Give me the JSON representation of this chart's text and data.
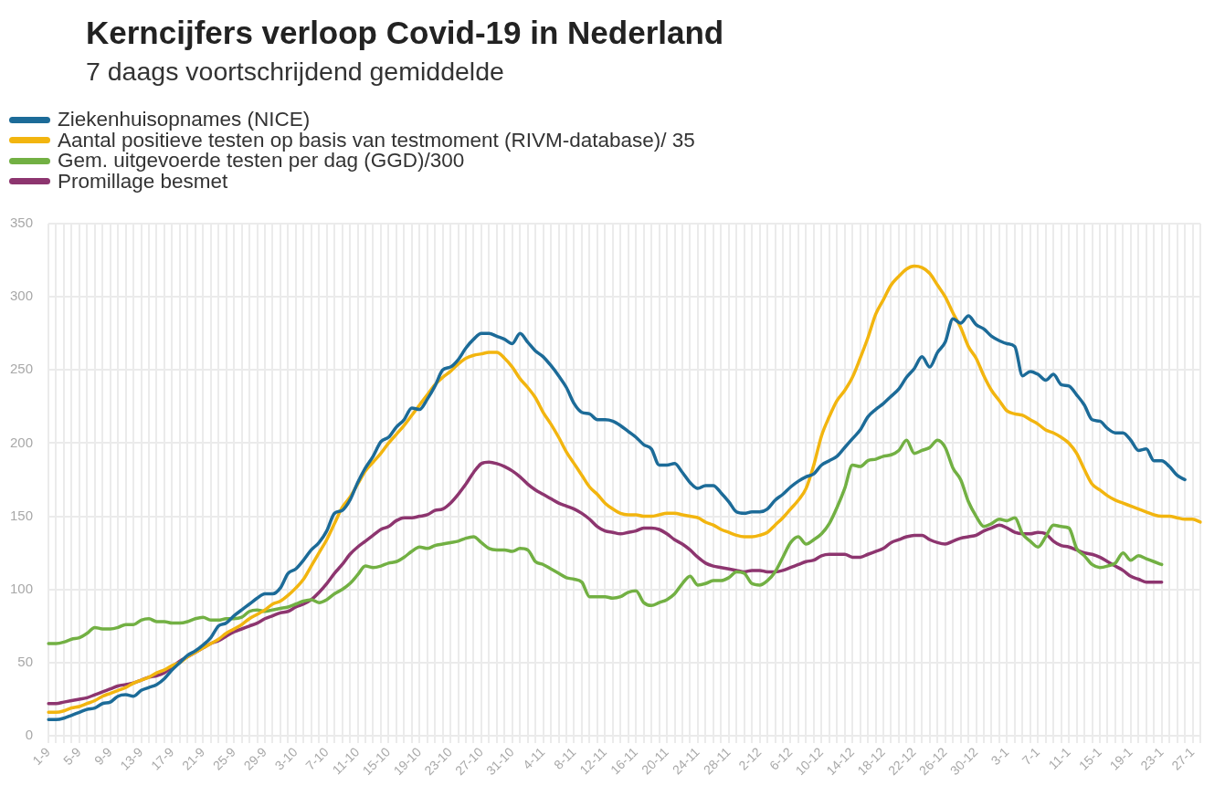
{
  "chart_data": {
    "type": "line",
    "title": "Kerncijfers verloop Covid-19 in Nederland",
    "subtitle": "7 daags voortschrijdend gemiddelde",
    "categories": [
      "1-9",
      null,
      null,
      null,
      "5-9",
      null,
      null,
      null,
      "9-9",
      null,
      null,
      null,
      "13-9",
      null,
      null,
      null,
      "17-9",
      null,
      null,
      null,
      "21-9",
      null,
      null,
      null,
      "25-9",
      null,
      null,
      null,
      "29-9",
      null,
      null,
      null,
      "3-10",
      null,
      null,
      null,
      "7-10",
      null,
      null,
      null,
      "11-10",
      null,
      null,
      null,
      "15-10",
      null,
      null,
      null,
      "19-10",
      null,
      null,
      null,
      "23-10",
      null,
      null,
      null,
      "27-10",
      null,
      null,
      null,
      "31-10",
      null,
      null,
      null,
      "4-11",
      null,
      null,
      null,
      "8-11",
      null,
      null,
      null,
      "12-11",
      null,
      null,
      null,
      "16-11",
      null,
      null,
      null,
      "20-11",
      null,
      null,
      null,
      "24-11",
      null,
      null,
      null,
      "28-11",
      null,
      null,
      null,
      "2-12",
      null,
      null,
      null,
      "6-12",
      null,
      null,
      null,
      "10-12",
      null,
      null,
      null,
      "14-12",
      null,
      null,
      null,
      "18-12",
      null,
      null,
      null,
      "22-12",
      null,
      null,
      null,
      "26-12",
      null,
      null,
      null,
      "30-12",
      null,
      null,
      null,
      "3-1",
      null,
      null,
      null,
      "7-1",
      null,
      null,
      null,
      "11-1",
      null,
      null,
      null,
      "15-1",
      null,
      null,
      null,
      "19-1",
      null,
      null,
      null,
      "23-1",
      null,
      null,
      null,
      "27-1",
      null
    ],
    "series": [
      {
        "name": "Ziekenhuisopnames (NICE)",
        "color": "#1c6b98",
        "values": [
          11,
          11,
          12,
          14,
          16,
          18,
          19,
          22,
          23,
          27,
          28,
          27,
          31,
          33,
          35,
          39,
          45,
          50,
          55,
          58,
          62,
          67,
          75,
          77,
          82,
          86,
          90,
          94,
          97,
          97,
          101,
          111,
          114,
          120,
          127,
          132,
          140,
          152,
          154,
          161,
          173,
          183,
          191,
          201,
          204,
          211,
          216,
          224,
          223,
          230,
          239,
          250,
          252,
          257,
          265,
          271,
          275,
          275,
          273,
          271,
          268,
          275,
          269,
          263,
          259,
          253,
          246,
          238,
          227,
          221,
          220,
          216,
          216,
          215,
          212,
          208,
          204,
          199,
          196,
          185,
          185,
          186,
          180,
          173,
          169,
          171,
          171,
          166,
          160,
          153,
          152,
          153,
          153,
          155,
          161,
          165,
          170,
          174,
          177,
          179,
          185,
          188,
          191,
          197,
          203,
          209,
          218,
          223,
          227,
          232,
          237,
          245,
          251,
          259,
          252,
          262,
          269,
          285,
          282,
          287,
          281,
          278,
          273,
          270,
          268,
          266,
          246,
          249,
          247,
          243,
          247,
          240,
          239,
          233,
          226,
          216,
          215,
          210,
          207,
          207,
          202,
          195,
          196,
          188,
          188,
          184,
          178,
          175,
          null,
          null
        ]
      },
      {
        "name": "Aantal positieve testen op basis van testmoment (RIVM-database)/ 35",
        "color": "#f2b50f",
        "values": [
          16,
          16,
          17,
          19,
          20,
          22,
          24,
          27,
          29,
          31,
          33,
          36,
          38,
          40,
          43,
          45,
          48,
          50,
          54,
          57,
          60,
          63,
          66,
          70,
          73,
          76,
          80,
          83,
          86,
          90,
          92,
          96,
          101,
          107,
          116,
          125,
          134,
          145,
          156,
          163,
          172,
          181,
          187,
          193,
          200,
          206,
          212,
          219,
          226,
          233,
          240,
          245,
          249,
          254,
          258,
          260,
          261,
          262,
          262,
          258,
          252,
          244,
          238,
          231,
          221,
          213,
          204,
          194,
          186,
          178,
          170,
          165,
          159,
          155,
          152,
          151,
          151,
          150,
          150,
          151,
          152,
          152,
          151,
          150,
          149,
          146,
          144,
          141,
          139,
          137,
          136,
          136,
          137,
          139,
          144,
          149,
          155,
          161,
          169,
          185,
          205,
          218,
          229,
          236,
          245,
          258,
          272,
          288,
          298,
          308,
          314,
          319,
          321,
          320,
          316,
          308,
          300,
          289,
          279,
          266,
          258,
          246,
          236,
          229,
          222,
          220,
          219,
          216,
          213,
          209,
          207,
          204,
          200,
          193,
          182,
          172,
          168,
          164,
          161,
          159,
          157,
          155,
          153,
          151,
          150,
          150,
          149,
          148,
          148,
          146
        ]
      },
      {
        "name": "Gem. uitgevoerde testen per dag (GGD)/300",
        "color": "#72b043",
        "values": [
          63,
          63,
          64,
          66,
          67,
          70,
          74,
          73,
          73,
          74,
          76,
          76,
          79,
          80,
          78,
          78,
          77,
          77,
          78,
          80,
          81,
          79,
          79,
          80,
          80,
          81,
          85,
          86,
          85,
          86,
          87,
          88,
          90,
          92,
          93,
          91,
          93,
          97,
          100,
          104,
          110,
          116,
          115,
          116,
          118,
          119,
          122,
          126,
          129,
          128,
          130,
          131,
          132,
          133,
          135,
          136,
          132,
          128,
          127,
          127,
          126,
          128,
          127,
          119,
          117,
          114,
          111,
          108,
          107,
          105,
          95,
          95,
          95,
          94,
          95,
          98,
          99,
          91,
          89,
          91,
          93,
          97,
          104,
          109,
          103,
          104,
          106,
          106,
          108,
          112,
          111,
          104,
          103,
          106,
          112,
          122,
          132,
          136,
          131,
          134,
          138,
          145,
          156,
          169,
          185,
          184,
          188,
          189,
          191,
          192,
          195,
          202,
          193,
          195,
          197,
          202,
          197,
          183,
          175,
          160,
          150,
          143,
          145,
          148,
          147,
          149,
          138,
          133,
          129,
          136,
          144,
          143,
          142,
          128,
          123,
          117,
          115,
          116,
          118,
          125,
          120,
          123,
          121,
          119,
          117,
          null,
          null,
          null,
          null,
          null
        ]
      },
      {
        "name": "Promillage besmet",
        "color": "#8d356f",
        "values": [
          22,
          22,
          23,
          24,
          25,
          26,
          28,
          30,
          32,
          34,
          35,
          36,
          38,
          40,
          41,
          43,
          47,
          51,
          54,
          57,
          60,
          63,
          65,
          68,
          71,
          73,
          75,
          77,
          80,
          82,
          84,
          85,
          88,
          90,
          93,
          98,
          104,
          111,
          117,
          124,
          129,
          133,
          137,
          141,
          143,
          147,
          149,
          149,
          150,
          151,
          154,
          155,
          159,
          165,
          172,
          180,
          186,
          187,
          186,
          184,
          181,
          177,
          172,
          168,
          165,
          162,
          159,
          157,
          155,
          152,
          148,
          143,
          140,
          139,
          138,
          139,
          140,
          142,
          142,
          141,
          138,
          134,
          131,
          127,
          122,
          118,
          116,
          115,
          114,
          113,
          112,
          113,
          113,
          112,
          112,
          113,
          115,
          117,
          119,
          120,
          123,
          124,
          124,
          124,
          122,
          122,
          124,
          126,
          128,
          132,
          134,
          136,
          137,
          137,
          134,
          132,
          131,
          133,
          135,
          136,
          137,
          140,
          142,
          144,
          142,
          139,
          138,
          138,
          139,
          138,
          133,
          130,
          129,
          127,
          125,
          124,
          122,
          119,
          116,
          113,
          109,
          107,
          105,
          105,
          105,
          null,
          null,
          null,
          null,
          null
        ]
      }
    ],
    "ylim": [
      0,
      350
    ],
    "yticks": [
      0,
      50,
      100,
      150,
      200,
      250,
      300,
      350
    ],
    "grid": true,
    "legend": "top left"
  }
}
